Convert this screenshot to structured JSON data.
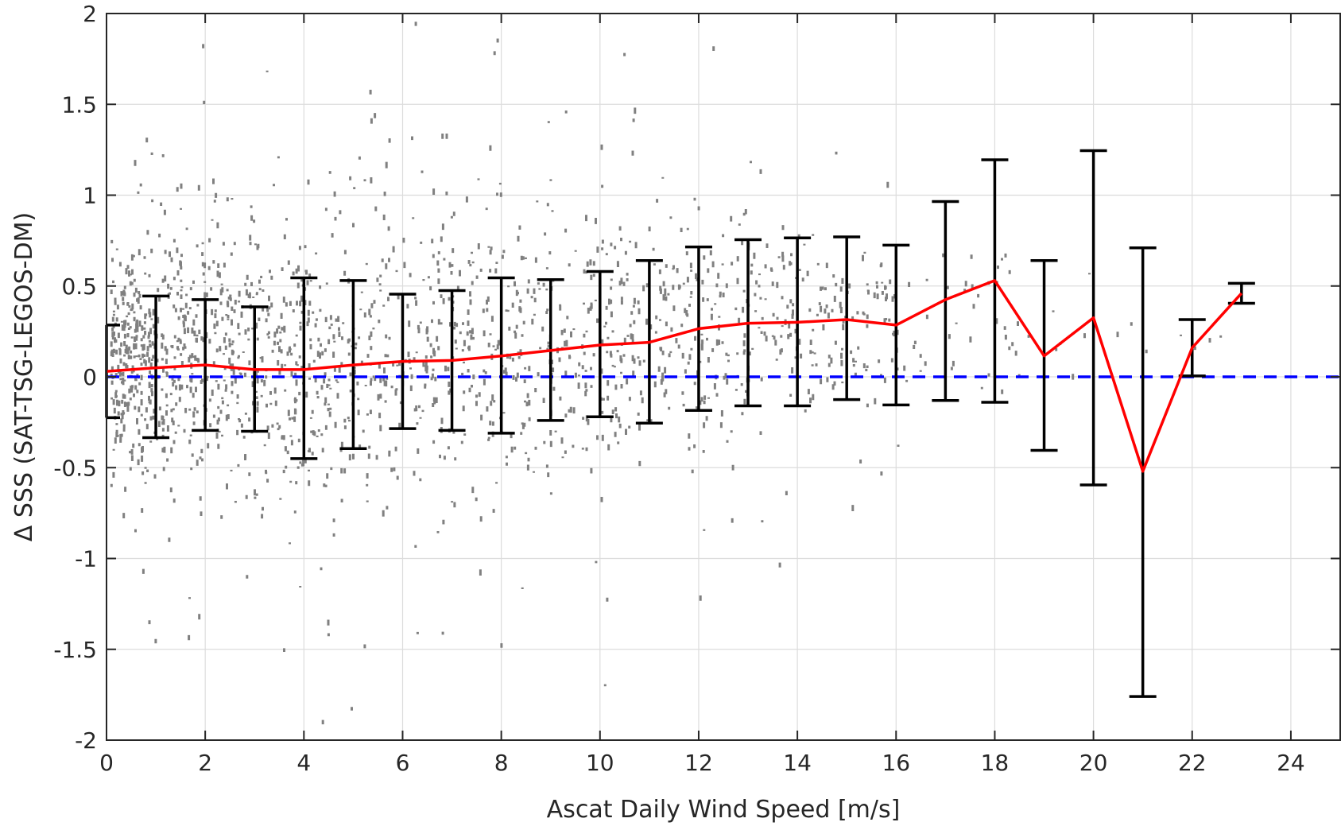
{
  "chart_data": {
    "type": "scatter",
    "xlabel": "Ascat Daily Wind Speed [m/s]",
    "ylabel": "Δ SSS (SAT-TSG-LEGOS-DM)",
    "xlim": [
      0,
      25
    ],
    "ylim": [
      -2,
      2
    ],
    "xticks": [
      0,
      2,
      4,
      6,
      8,
      10,
      12,
      14,
      16,
      18,
      20,
      22,
      24
    ],
    "xtick_labels": [
      "0",
      "2",
      "4",
      "6",
      "8",
      "10",
      "12",
      "14",
      "16",
      "18",
      "20",
      "22",
      "24"
    ],
    "yticks": [
      2,
      1.5,
      1,
      0.5,
      0,
      -0.5,
      -1,
      -1.5,
      -2
    ],
    "ytick_labels": [
      "2",
      "1.5",
      "1",
      "0.5",
      "0",
      "-0.5",
      "-1",
      "-1.5",
      "-2"
    ],
    "grid": true,
    "colors": {
      "scatter": "#808080",
      "mean_line": "#ff0000",
      "zero_line": "#0000ff",
      "error_bars": "#000000"
    },
    "scatter_envelope": {
      "description_x": [
        0,
        1,
        2,
        3,
        4,
        5,
        6,
        7,
        8,
        9,
        10,
        11,
        12,
        13,
        14,
        15,
        16,
        17,
        18,
        19,
        20,
        21,
        22,
        23
      ],
      "core_low": [
        -0.25,
        -0.45,
        -0.5,
        -0.55,
        -0.6,
        -0.6,
        -0.6,
        -0.55,
        -0.5,
        -0.45,
        -0.4,
        -0.35,
        -0.25,
        -0.2,
        -0.15,
        -0.1,
        -0.05,
        0.0,
        0.0,
        0.0,
        0.0,
        0.0,
        0.0,
        0.0
      ],
      "core_high": [
        0.5,
        0.7,
        0.8,
        0.8,
        0.85,
        0.85,
        0.85,
        0.85,
        0.9,
        0.85,
        0.85,
        0.85,
        0.85,
        0.8,
        0.8,
        0.75,
        0.7,
        0.7,
        0.8,
        0.6,
        0.5,
        0.3,
        0.3,
        0.5
      ]
    },
    "series": [
      {
        "x": [
          0,
          1,
          2,
          3,
          4,
          5,
          6,
          7,
          8,
          9,
          10,
          11,
          12,
          13,
          14,
          15,
          16,
          17,
          18,
          19,
          20,
          21,
          22,
          23
        ],
        "mean": [
          0.03,
          0.05,
          0.065,
          0.04,
          0.04,
          0.065,
          0.085,
          0.09,
          0.115,
          0.145,
          0.175,
          0.19,
          0.265,
          0.295,
          0.3,
          0.315,
          0.285,
          0.425,
          0.53,
          0.115,
          0.325,
          -0.52,
          0.16,
          0.46
        ],
        "upper": [
          0.285,
          0.445,
          0.425,
          0.385,
          0.545,
          0.53,
          0.455,
          0.475,
          0.545,
          0.535,
          0.58,
          0.64,
          0.715,
          0.755,
          0.765,
          0.77,
          0.725,
          0.965,
          1.195,
          0.64,
          1.245,
          0.71,
          0.315,
          0.515
        ],
        "lower": [
          -0.225,
          -0.335,
          -0.295,
          -0.3,
          -0.45,
          -0.395,
          -0.285,
          -0.295,
          -0.31,
          -0.24,
          -0.22,
          -0.255,
          -0.185,
          -0.16,
          -0.16,
          -0.125,
          -0.155,
          -0.13,
          -0.14,
          -0.405,
          -0.595,
          -1.76,
          0.005,
          0.405
        ]
      }
    ]
  }
}
